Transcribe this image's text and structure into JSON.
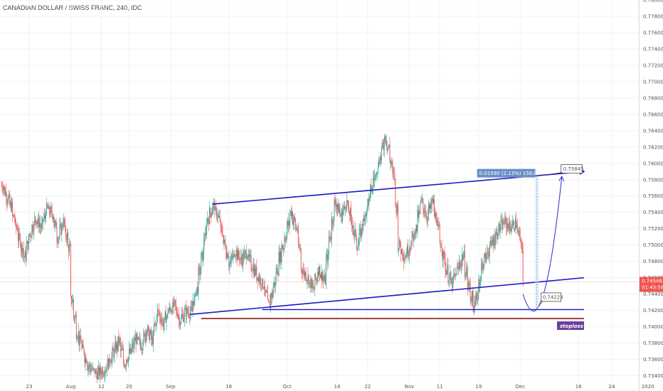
{
  "window": {
    "symbol_title": "CANADIAN DOLLAR / SWISS FRANC, 240, IDC"
  },
  "colors": {
    "up": "#26a69a",
    "down": "#ef5350",
    "channel": "#1818c8",
    "stoploss_line": "#8b1a1a",
    "arrow": "#3b3bd6",
    "price_tag": "#ef5350",
    "measure": "#6b8fc7",
    "stoploss_badge": "#6b3fa0"
  },
  "chart_data": {
    "type": "candlestick",
    "title": "CANADIAN DOLLAR / SWISS FRANC, 240, IDC",
    "y_range": [
      0.733,
      0.78
    ],
    "y_ticks": [
      "0.73400",
      "0.73600",
      "0.73800",
      "0.74000",
      "0.74200",
      "0.74400",
      "0.74600",
      "0.74800",
      "0.75000",
      "0.75200",
      "0.75400",
      "0.75600",
      "0.75800",
      "0.76000",
      "0.76200",
      "0.76400",
      "0.76600",
      "0.76800",
      "0.77000",
      "0.77200",
      "0.77400",
      "0.77600",
      "0.77800",
      "0.78000"
    ],
    "x_ticks": [
      "23",
      "Aug",
      "12",
      "20",
      "Sep",
      "16",
      "Oct",
      "14",
      "22",
      "Nov",
      "11",
      "19",
      "Dec",
      "16",
      "24",
      "2020"
    ],
    "x_tick_bars": [
      10,
      25,
      36,
      46,
      61,
      82,
      103,
      121,
      132,
      147,
      158,
      172,
      187,
      208,
      220,
      233
    ],
    "current_price": "0.74548",
    "countdown": "01:43:58",
    "price_path": [
      [
        0,
        0.7573
      ],
      [
        3,
        0.7548
      ],
      [
        6,
        0.7508
      ],
      [
        8,
        0.7486
      ],
      [
        10,
        0.7514
      ],
      [
        12,
        0.7532
      ],
      [
        14,
        0.7522
      ],
      [
        16,
        0.7544
      ],
      [
        18,
        0.7538
      ],
      [
        20,
        0.751
      ],
      [
        22,
        0.7528
      ],
      [
        24,
        0.7496
      ],
      [
        25,
        0.7432
      ],
      [
        27,
        0.7392
      ],
      [
        29,
        0.7372
      ],
      [
        31,
        0.7352
      ],
      [
        34,
        0.7342
      ],
      [
        37,
        0.7348
      ],
      [
        40,
        0.7368
      ],
      [
        42,
        0.7382
      ],
      [
        44,
        0.7356
      ],
      [
        46,
        0.7368
      ],
      [
        48,
        0.7384
      ],
      [
        50,
        0.7378
      ],
      [
        52,
        0.7396
      ],
      [
        54,
        0.7384
      ],
      [
        56,
        0.7418
      ],
      [
        58,
        0.7404
      ],
      [
        60,
        0.742
      ],
      [
        62,
        0.7426
      ],
      [
        64,
        0.7408
      ],
      [
        66,
        0.7418
      ],
      [
        68,
        0.7418
      ],
      [
        70,
        0.7446
      ],
      [
        72,
        0.7486
      ],
      [
        74,
        0.7532
      ],
      [
        76,
        0.7548
      ],
      [
        78,
        0.7532
      ],
      [
        80,
        0.7502
      ],
      [
        82,
        0.7478
      ],
      [
        84,
        0.7492
      ],
      [
        86,
        0.7482
      ],
      [
        88,
        0.749
      ],
      [
        90,
        0.7474
      ],
      [
        92,
        0.7462
      ],
      [
        94,
        0.7452
      ],
      [
        96,
        0.7426
      ],
      [
        98,
        0.7452
      ],
      [
        100,
        0.7486
      ],
      [
        102,
        0.751
      ],
      [
        104,
        0.754
      ],
      [
        106,
        0.752
      ],
      [
        108,
        0.747
      ],
      [
        110,
        0.746
      ],
      [
        112,
        0.7446
      ],
      [
        114,
        0.747
      ],
      [
        116,
        0.7456
      ],
      [
        118,
        0.751
      ],
      [
        120,
        0.7552
      ],
      [
        122,
        0.7536
      ],
      [
        124,
        0.7552
      ],
      [
        126,
        0.7526
      ],
      [
        128,
        0.75
      ],
      [
        130,
        0.7528
      ],
      [
        132,
        0.7554
      ],
      [
        134,
        0.7582
      ],
      [
        136,
        0.7606
      ],
      [
        138,
        0.7632
      ],
      [
        139,
        0.762
      ],
      [
        141,
        0.7584
      ],
      [
        142,
        0.7546
      ],
      [
        143,
        0.75
      ],
      [
        145,
        0.7486
      ],
      [
        147,
        0.75
      ],
      [
        149,
        0.752
      ],
      [
        151,
        0.7552
      ],
      [
        153,
        0.7536
      ],
      [
        155,
        0.7552
      ],
      [
        156,
        0.7536
      ],
      [
        158,
        0.7502
      ],
      [
        160,
        0.747
      ],
      [
        162,
        0.7452
      ],
      [
        164,
        0.747
      ],
      [
        166,
        0.7486
      ],
      [
        168,
        0.745
      ],
      [
        170,
        0.7424
      ],
      [
        171,
        0.7438
      ],
      [
        173,
        0.7476
      ],
      [
        175,
        0.7492
      ],
      [
        177,
        0.7506
      ],
      [
        179,
        0.752
      ],
      [
        181,
        0.7528
      ],
      [
        183,
        0.7522
      ],
      [
        185,
        0.7526
      ],
      [
        187,
        0.75
      ],
      [
        188,
        0.7454
      ]
    ],
    "annotations": {
      "measure_label": "0.01580 (2.13%) 158.0",
      "target_label": "0.75845",
      "low_label": "0.74223",
      "stoploss_label": "stoploss",
      "upper_channel": [
        [
          76,
          0.755
        ],
        [
          210,
          0.759
        ]
      ],
      "lower_channel": [
        [
          68,
          0.7415
        ],
        [
          210,
          0.746
        ]
      ],
      "support": [
        [
          94,
          0.7421
        ],
        [
          210,
          0.7421
        ]
      ],
      "stoploss_level": [
        [
          72,
          0.741
        ],
        [
          210,
          0.741
        ]
      ],
      "projection": [
        [
          188,
          0.744
        ],
        [
          190,
          0.7426
        ],
        [
          193,
          0.7422
        ],
        [
          197,
          0.7448
        ],
        [
          200,
          0.752
        ],
        [
          202,
          0.7584
        ]
      ],
      "target_price": 0.75845,
      "low_price": 0.74223
    }
  }
}
